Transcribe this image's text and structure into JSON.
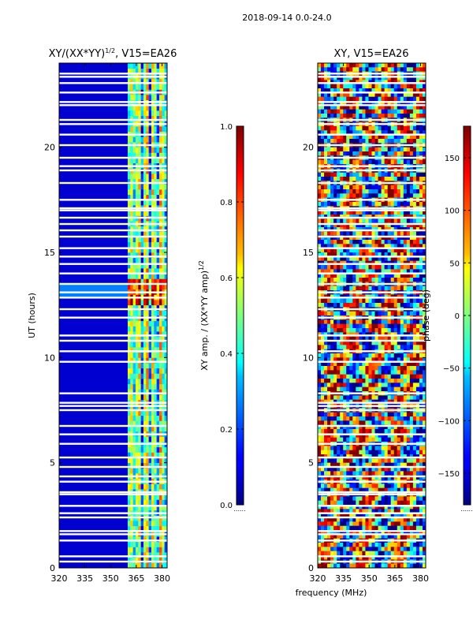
{
  "figure": {
    "suptitle": "2018-09-14 0.0-24.0",
    "shared_xlabel": "frequency (MHz)"
  },
  "chart_data": [
    {
      "type": "heatmap",
      "title_main": "XY/(XX*YY)",
      "title_sup": "1/2",
      "title_tail": ", V15=EA26",
      "xlabel": "frequency (MHz)",
      "ylabel": "UT (hours)",
      "xlim": [
        320,
        383
      ],
      "ylim": [
        0,
        24
      ],
      "xticks": [
        320,
        335,
        350,
        365,
        380
      ],
      "yticks": [
        0,
        5,
        10,
        15,
        20
      ],
      "colormap": "jet",
      "zlim": [
        0.0,
        1.0
      ],
      "colorbar": {
        "label_main": "XY amp. / (XX*YY amp)",
        "label_sup": "1/2",
        "ticks": [
          0.0,
          0.2,
          0.4,
          0.6,
          0.8,
          1.0
        ],
        "tick_labels": [
          "0.0",
          "0.2",
          "0.4",
          "0.6",
          "0.8",
          "1.0"
        ],
        "stub_label": "......"
      },
      "structure": {
        "background_level": 0.08,
        "band_start_mhz": 360,
        "band_levels": [
          0.45,
          0.55,
          0.65,
          0.5,
          0.6
        ],
        "strong_row_ut": 13.2
      }
    },
    {
      "type": "heatmap",
      "title": "XY, V15=EA26",
      "xlabel": "frequency (MHz)",
      "xlim": [
        320,
        383
      ],
      "ylim": [
        0,
        24
      ],
      "xticks": [
        320,
        335,
        350,
        365,
        380
      ],
      "yticks": [
        0,
        5,
        10,
        15,
        20
      ],
      "colormap": "jet",
      "zlim": [
        -180,
        180
      ],
      "colorbar": {
        "label": "phase (deg)",
        "ticks": [
          -150,
          -100,
          -50,
          0,
          50,
          100,
          150
        ],
        "tick_labels": [
          "−150",
          "−100",
          "−50",
          "0",
          "50",
          "100",
          "150"
        ],
        "stub_label": "......"
      }
    }
  ],
  "flagged_gaps_ut": [
    0.3,
    0.55,
    1.3,
    1.6,
    1.75,
    2.4,
    2.6,
    2.95,
    3.5,
    3.6,
    4.1,
    4.35,
    4.8,
    5.25,
    5.9,
    6.35,
    6.75,
    7.5,
    7.7,
    7.85,
    8.3,
    9.8,
    10.3,
    10.8,
    11.05,
    11.9,
    12.3,
    12.85,
    13.1,
    13.5,
    14.0,
    14.45,
    14.8,
    15.2,
    15.75,
    16.05,
    16.35,
    16.65,
    17.0,
    17.1,
    17.5,
    18.3,
    18.9,
    19.1,
    19.5,
    20.1,
    20.6,
    21.1,
    21.3,
    22.0,
    22.15,
    22.6,
    23.05,
    23.35,
    23.5
  ]
}
